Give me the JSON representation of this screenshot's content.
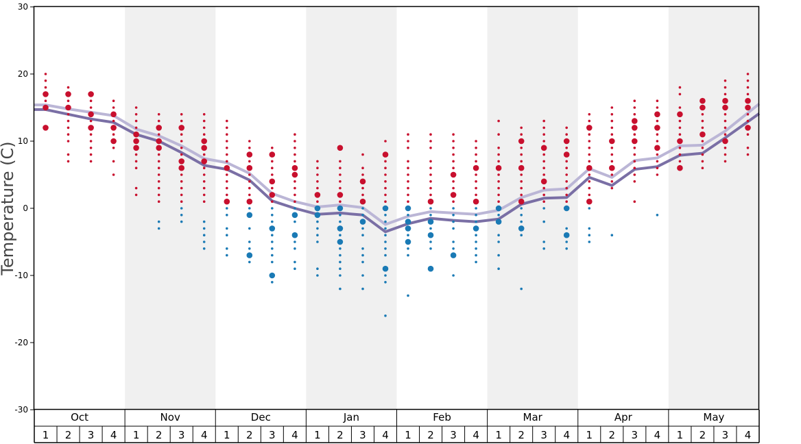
{
  "chart_data": {
    "type": "scatter",
    "ylabel": "Temperature (C)",
    "ylim": [
      -30,
      30
    ],
    "yticks": [
      -30,
      -20,
      -10,
      0,
      10,
      20,
      30
    ],
    "grid": false,
    "months": [
      "Oct",
      "Nov",
      "Dec",
      "Jan",
      "Feb",
      "Mar",
      "Apr",
      "May"
    ],
    "weeks": [
      "1",
      "2",
      "3",
      "4"
    ],
    "colors": {
      "warm_point": "#c8102e",
      "cold_point": "#1a7ab5",
      "line_dark": "#7a6fa5",
      "line_light": "#bbb6d6",
      "shade": "#f0f0f0"
    },
    "series": [
      {
        "values": [
          14.7,
          14.0,
          13.3,
          12.8,
          11.0,
          10.0,
          8.3,
          6.4,
          5.8,
          4.2,
          1.1,
          0.0,
          -0.9,
          -0.7,
          -1.0,
          -3.5,
          -2.3,
          -1.5,
          -1.8,
          -2.0,
          -1.6,
          0.6,
          1.5,
          1.6,
          4.6,
          3.4,
          5.8,
          6.2,
          7.9,
          8.2,
          10.5,
          12.9
        ]
      },
      {
        "values": [
          15.4,
          14.8,
          14.3,
          13.8,
          11.8,
          10.8,
          9.3,
          7.4,
          6.8,
          5.2,
          2.2,
          1.0,
          0.2,
          0.5,
          0.1,
          -2.4,
          -1.2,
          -0.5,
          -0.7,
          -0.9,
          -0.3,
          1.6,
          2.7,
          2.9,
          5.9,
          4.6,
          7.1,
          7.5,
          9.3,
          9.4,
          11.5,
          14.2
        ]
      }
    ],
    "points": [
      {
        "temps": [
          20,
          19,
          18,
          17,
          16,
          15,
          12
        ],
        "big": [
          17,
          15,
          12
        ]
      },
      {
        "temps": [
          18,
          17,
          16,
          15,
          14,
          13,
          12,
          11,
          10,
          8,
          7
        ],
        "big": [
          17,
          15
        ]
      },
      {
        "temps": [
          17,
          16,
          15,
          14,
          13,
          12,
          11,
          10,
          9,
          8,
          7
        ],
        "big": [
          17,
          14,
          12
        ]
      },
      {
        "temps": [
          16,
          15,
          14,
          13,
          12,
          11,
          10,
          9,
          7,
          5
        ],
        "big": [
          14,
          12,
          10
        ]
      },
      {
        "temps": [
          15,
          14,
          13,
          12,
          11,
          10,
          9,
          8,
          7,
          6,
          3,
          2
        ],
        "big": [
          11,
          10,
          9
        ]
      },
      {
        "temps": [
          14,
          13,
          12,
          11,
          10,
          9,
          8,
          7,
          6,
          5,
          4,
          3,
          2,
          1,
          -2,
          -3
        ],
        "big": [
          12,
          10,
          9
        ]
      },
      {
        "temps": [
          14,
          13,
          12,
          11,
          10,
          9,
          8,
          7,
          6,
          5,
          4,
          3,
          2,
          1,
          0,
          -1,
          -2
        ],
        "big": [
          12,
          7,
          6
        ]
      },
      {
        "temps": [
          14,
          13,
          12,
          11,
          10,
          9,
          8,
          7,
          6,
          5,
          4,
          3,
          2,
          1,
          -2,
          -3,
          -4,
          -5,
          -6
        ],
        "big": [
          10,
          9,
          7
        ]
      },
      {
        "temps": [
          13,
          12,
          11,
          10,
          9,
          8,
          7,
          6,
          5,
          4,
          3,
          2,
          1,
          0,
          -1,
          -3,
          -4,
          -6,
          -7
        ],
        "big": [
          6,
          1
        ]
      },
      {
        "temps": [
          10,
          9,
          8,
          7,
          6,
          5,
          4,
          3,
          2,
          1,
          0,
          -1,
          -3,
          -5,
          -6,
          -7,
          -8
        ],
        "big": [
          8,
          6,
          1,
          -1,
          -7
        ]
      },
      {
        "temps": [
          9,
          8,
          7,
          6,
          5,
          4,
          3,
          2,
          1,
          0,
          -1,
          -2,
          -3,
          -4,
          -5,
          -6,
          -7,
          -8,
          -10,
          -11
        ],
        "big": [
          8,
          4,
          2,
          -3,
          -10
        ]
      },
      {
        "temps": [
          11,
          10,
          9,
          8,
          7,
          6,
          5,
          4,
          3,
          2,
          1,
          0,
          -1,
          -2,
          -4,
          -5,
          -6,
          -8,
          -9
        ],
        "big": [
          6,
          5,
          -1,
          -4
        ]
      },
      {
        "temps": [
          7,
          6,
          5,
          4,
          3,
          2,
          1,
          0,
          -1,
          -2,
          -3,
          -4,
          -5,
          -9,
          -10
        ],
        "big": [
          2,
          0,
          -1
        ]
      },
      {
        "temps": [
          9,
          7,
          6,
          5,
          4,
          3,
          2,
          1,
          0,
          -1,
          -2,
          -3,
          -4,
          -5,
          -6,
          -7,
          -8,
          -9,
          -10,
          -12
        ],
        "big": [
          9,
          2,
          0,
          -3,
          -5
        ]
      },
      {
        "temps": [
          8,
          6,
          5,
          4,
          3,
          2,
          1,
          0,
          -1,
          -2,
          -3,
          -4,
          -6,
          -7,
          -8,
          -10,
          -12
        ],
        "big": [
          4,
          1,
          -2
        ]
      },
      {
        "temps": [
          10,
          8,
          7,
          6,
          5,
          4,
          3,
          2,
          1,
          0,
          -1,
          -2,
          -3,
          -4,
          -5,
          -6,
          -7,
          -9,
          -10,
          -11,
          -16
        ],
        "big": [
          8,
          0,
          -9
        ]
      },
      {
        "temps": [
          11,
          10,
          9,
          7,
          6,
          5,
          4,
          3,
          2,
          1,
          0,
          -1,
          -2,
          -3,
          -4,
          -5,
          -6,
          -7,
          -13
        ],
        "big": [
          0,
          -2,
          -3,
          -5
        ]
      },
      {
        "temps": [
          11,
          10,
          9,
          7,
          6,
          5,
          4,
          3,
          2,
          1,
          0,
          -1,
          -2,
          -3,
          -4,
          -5,
          -6,
          -9
        ],
        "big": [
          1,
          -2,
          -4,
          -9
        ]
      },
      {
        "temps": [
          11,
          10,
          9,
          8,
          7,
          6,
          5,
          4,
          3,
          2,
          1,
          0,
          -1,
          -2,
          -3,
          -5,
          -6,
          -7,
          -10
        ],
        "big": [
          5,
          2,
          -7
        ]
      },
      {
        "temps": [
          10,
          9,
          8,
          7,
          6,
          5,
          4,
          3,
          2,
          1,
          0,
          -1,
          -2,
          -3,
          -4,
          -5,
          -6,
          -7,
          -8
        ],
        "big": [
          6,
          1,
          -3
        ]
      },
      {
        "temps": [
          13,
          11,
          9,
          8,
          7,
          6,
          5,
          4,
          3,
          2,
          1,
          0,
          -1,
          -2,
          -4,
          -5,
          -7,
          -9
        ],
        "big": [
          6,
          0,
          -2
        ]
      },
      {
        "temps": [
          12,
          11,
          10,
          9,
          8,
          7,
          6,
          5,
          4,
          3,
          2,
          1,
          0,
          -1,
          -2,
          -3,
          -4,
          -12
        ],
        "big": [
          10,
          6,
          1,
          -3
        ]
      },
      {
        "temps": [
          13,
          12,
          11,
          10,
          9,
          8,
          7,
          6,
          5,
          4,
          3,
          2,
          1,
          0,
          -2,
          -5,
          -6
        ],
        "big": [
          9,
          4
        ]
      },
      {
        "temps": [
          12,
          11,
          10,
          9,
          8,
          7,
          6,
          5,
          4,
          3,
          2,
          1,
          0,
          -3,
          -4,
          -5,
          -6
        ],
        "big": [
          10,
          8,
          0,
          -4
        ]
      },
      {
        "temps": [
          14,
          13,
          12,
          11,
          10,
          9,
          8,
          7,
          6,
          5,
          4,
          3,
          2,
          1,
          0,
          -3,
          -4,
          -5
        ],
        "big": [
          12,
          6,
          1
        ]
      },
      {
        "temps": [
          15,
          14,
          13,
          12,
          11,
          10,
          9,
          8,
          7,
          6,
          5,
          4,
          3,
          -4
        ],
        "big": [
          10,
          6
        ]
      },
      {
        "temps": [
          16,
          15,
          14,
          13,
          12,
          11,
          10,
          9,
          8,
          7,
          6,
          5,
          4,
          1
        ],
        "big": [
          13,
          12,
          10
        ]
      },
      {
        "temps": [
          16,
          15,
          14,
          13,
          12,
          11,
          10,
          9,
          8,
          7,
          6,
          5,
          -1
        ],
        "big": [
          14,
          12,
          9
        ]
      },
      {
        "temps": [
          18,
          17,
          15,
          14,
          13,
          12,
          11,
          10,
          9,
          8,
          7,
          6
        ],
        "big": [
          14,
          10,
          6
        ]
      },
      {
        "temps": [
          16,
          15,
          14,
          13,
          12,
          11,
          10,
          9,
          8,
          7,
          6
        ],
        "big": [
          16,
          15,
          11
        ]
      },
      {
        "temps": [
          19,
          18,
          17,
          16,
          15,
          14,
          13,
          12,
          11,
          10,
          9,
          8,
          7
        ],
        "big": [
          16,
          15,
          10
        ]
      },
      {
        "temps": [
          20,
          19,
          18,
          17,
          16,
          15,
          14,
          13,
          12,
          11,
          9,
          8
        ],
        "big": [
          16,
          15,
          12
        ]
      }
    ]
  }
}
